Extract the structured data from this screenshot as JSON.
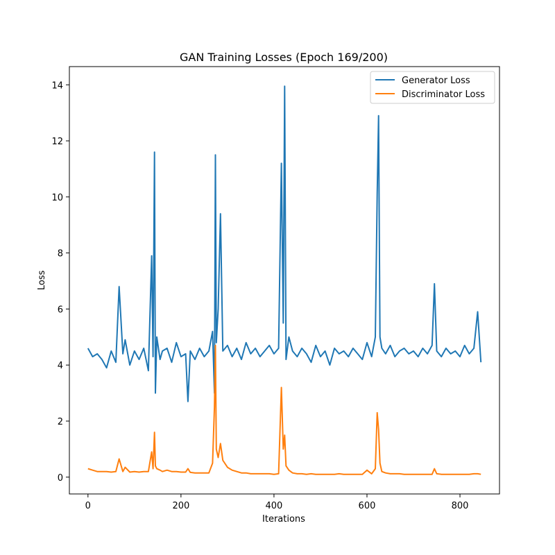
{
  "chart_data": {
    "type": "line",
    "title": "GAN Training Losses (Epoch 169/200)",
    "xlabel": "Iterations",
    "ylabel": "Loss",
    "xlim": [
      -40,
      885
    ],
    "ylim": [
      -0.6,
      14.65
    ],
    "xticks": [
      0,
      200,
      400,
      600,
      800
    ],
    "yticks": [
      0,
      2,
      4,
      6,
      8,
      10,
      12,
      14
    ],
    "grid": false,
    "legend_placement": "top-right",
    "colors": {
      "generator": "#1f77b4",
      "discriminator": "#ff7f0e"
    },
    "x": [
      0,
      10,
      20,
      30,
      40,
      50,
      60,
      67,
      75,
      80,
      90,
      100,
      110,
      120,
      130,
      137,
      140,
      143,
      145,
      148,
      155,
      160,
      170,
      180,
      190,
      200,
      210,
      215,
      220,
      230,
      240,
      250,
      260,
      268,
      272,
      274,
      276,
      280,
      285,
      290,
      300,
      310,
      320,
      330,
      340,
      350,
      360,
      370,
      380,
      390,
      400,
      410,
      416,
      420,
      423,
      426,
      432,
      440,
      450,
      460,
      470,
      480,
      490,
      500,
      510,
      520,
      530,
      540,
      550,
      560,
      570,
      580,
      590,
      600,
      610,
      618,
      622,
      625,
      628,
      632,
      640,
      650,
      660,
      670,
      680,
      690,
      700,
      710,
      720,
      730,
      740,
      745,
      750,
      760,
      770,
      780,
      790,
      800,
      810,
      820,
      830,
      838,
      845
    ],
    "series": [
      {
        "name": "Generator Loss",
        "values": [
          4.6,
          4.3,
          4.4,
          4.2,
          3.9,
          4.5,
          4.1,
          6.8,
          4.4,
          4.9,
          4.0,
          4.5,
          4.2,
          4.6,
          3.8,
          7.9,
          4.3,
          11.6,
          3.0,
          5.0,
          4.2,
          4.5,
          4.6,
          4.1,
          4.8,
          4.3,
          4.4,
          2.7,
          4.5,
          4.2,
          4.6,
          4.3,
          4.5,
          5.2,
          3.0,
          11.5,
          4.8,
          6.0,
          9.4,
          4.5,
          4.7,
          4.3,
          4.6,
          4.2,
          4.8,
          4.4,
          4.6,
          4.3,
          4.5,
          4.7,
          4.4,
          4.6,
          11.2,
          5.5,
          13.95,
          4.2,
          5.0,
          4.5,
          4.3,
          4.6,
          4.4,
          4.1,
          4.7,
          4.3,
          4.5,
          4.0,
          4.6,
          4.4,
          4.5,
          4.3,
          4.6,
          4.4,
          4.2,
          4.8,
          4.3,
          5.0,
          10.1,
          12.9,
          5.0,
          4.6,
          4.4,
          4.7,
          4.3,
          4.5,
          4.6,
          4.4,
          4.5,
          4.3,
          4.6,
          4.4,
          4.7,
          6.9,
          4.5,
          4.3,
          4.6,
          4.4,
          4.5,
          4.3,
          4.7,
          4.4,
          4.6,
          5.9,
          4.1
        ]
      },
      {
        "name": "Discriminator Loss",
        "values": [
          0.3,
          0.25,
          0.2,
          0.2,
          0.2,
          0.18,
          0.2,
          0.65,
          0.2,
          0.35,
          0.18,
          0.2,
          0.18,
          0.2,
          0.2,
          0.9,
          0.3,
          1.6,
          0.4,
          0.3,
          0.25,
          0.2,
          0.25,
          0.2,
          0.2,
          0.18,
          0.18,
          0.3,
          0.17,
          0.15,
          0.15,
          0.15,
          0.15,
          0.5,
          2.5,
          4.7,
          1.0,
          0.7,
          1.2,
          0.6,
          0.35,
          0.25,
          0.2,
          0.15,
          0.15,
          0.12,
          0.12,
          0.12,
          0.12,
          0.12,
          0.1,
          0.12,
          3.2,
          1.0,
          1.5,
          0.4,
          0.25,
          0.15,
          0.12,
          0.12,
          0.1,
          0.12,
          0.1,
          0.1,
          0.1,
          0.1,
          0.1,
          0.12,
          0.1,
          0.1,
          0.1,
          0.1,
          0.1,
          0.25,
          0.12,
          0.3,
          2.3,
          1.7,
          0.5,
          0.2,
          0.15,
          0.12,
          0.12,
          0.12,
          0.1,
          0.1,
          0.1,
          0.1,
          0.1,
          0.1,
          0.1,
          0.3,
          0.12,
          0.1,
          0.1,
          0.1,
          0.1,
          0.1,
          0.1,
          0.1,
          0.12,
          0.12,
          0.1
        ]
      }
    ]
  }
}
